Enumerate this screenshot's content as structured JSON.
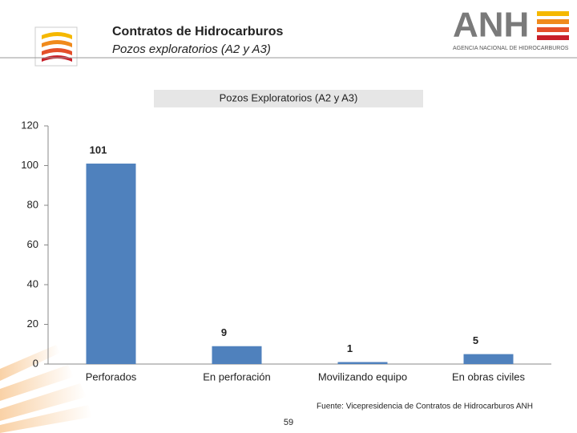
{
  "slide": {
    "title": "Contratos de Hidrocarburos",
    "subtitle": "Pozos exploratorios (A2 y A3)",
    "logo_text": "ANH",
    "logo_subtext": "AGENCIA NACIONAL DE HIDROCARBUROS",
    "source": "Fuente: Vicepresidencia de Contratos de Hidrocarburos ANH",
    "page": "59"
  },
  "chart_data": {
    "type": "bar",
    "title": "Pozos Exploratorios (A2 y A3)",
    "categories": [
      "Perforados",
      "En perforación",
      "Movilizando equipo",
      "En obras civiles"
    ],
    "values": [
      101,
      9,
      1,
      5
    ],
    "color": "#4f81bd",
    "ylim": [
      0,
      120
    ],
    "yticks": [
      0,
      20,
      40,
      60,
      80,
      100,
      120
    ],
    "grid": false
  }
}
